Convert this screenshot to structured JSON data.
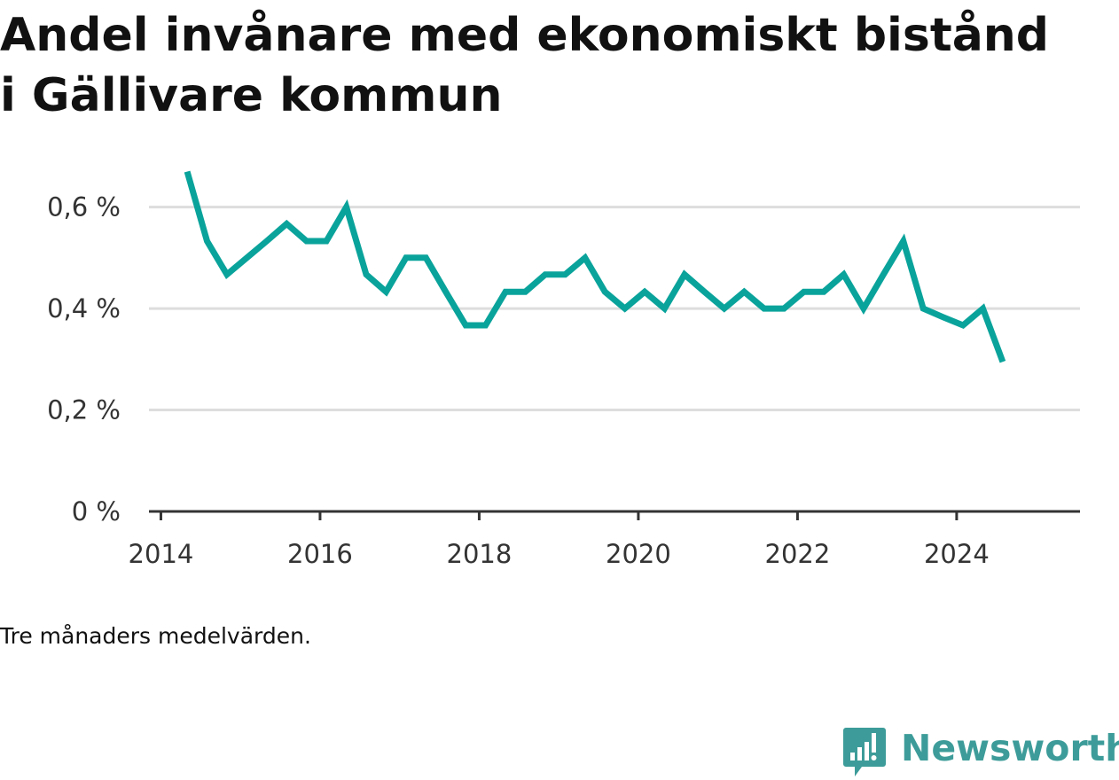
{
  "title": "Andel invånare med ekonomiskt bistånd i Gällivare kommun",
  "note": "Tre månaders medelvärden.",
  "brand": {
    "name": "Newsworthy",
    "icon": "newsworthy-logo-icon",
    "color": "#3d9c99"
  },
  "colors": {
    "line": "#0aa39b",
    "grid": "#dddddd",
    "axis": "#333333"
  },
  "chart_data": {
    "type": "line",
    "title": "Andel invånare med ekonomiskt bistånd i Gällivare kommun",
    "xlabel": "",
    "ylabel": "",
    "xlim": [
      2013.85,
      2025.55
    ],
    "ylim": [
      0,
      0.65
    ],
    "grid": true,
    "x_ticks": [
      2014,
      2016,
      2018,
      2020,
      2022,
      2024
    ],
    "x_tick_labels": [
      "2014",
      "2016",
      "2018",
      "2020",
      "2022",
      "2024"
    ],
    "y_ticks": [
      0,
      0.2,
      0.4,
      0.6
    ],
    "y_tick_labels": [
      "0 %",
      "0,2 %",
      "0,4 %",
      "0,6 %"
    ],
    "series": [
      {
        "x": [
          2014.33,
          2014.58,
          2014.83,
          2015.08,
          2015.33,
          2015.58,
          2015.83,
          2016.08,
          2016.33,
          2016.58,
          2016.83,
          2017.08,
          2017.33,
          2017.58,
          2017.83,
          2018.08,
          2018.33,
          2018.58,
          2018.83,
          2019.08,
          2019.33,
          2019.58,
          2019.83,
          2020.08,
          2020.33,
          2020.58,
          2020.83,
          2021.08,
          2021.33,
          2021.58,
          2021.83,
          2022.08,
          2022.33,
          2022.58,
          2022.83,
          2023.08,
          2023.33,
          2023.58,
          2023.83,
          2024.08,
          2024.33,
          2024.58
        ],
        "values": [
          0.67,
          0.533,
          0.467,
          0.5,
          0.533,
          0.567,
          0.533,
          0.533,
          0.6,
          0.467,
          0.433,
          0.5,
          0.5,
          0.433,
          0.367,
          0.367,
          0.433,
          0.433,
          0.467,
          0.467,
          0.5,
          0.433,
          0.4,
          0.433,
          0.4,
          0.467,
          0.433,
          0.4,
          0.433,
          0.4,
          0.4,
          0.433,
          0.433,
          0.467,
          0.4,
          0.467,
          0.533,
          0.4,
          0.383,
          0.367,
          0.4,
          0.295
        ]
      }
    ]
  }
}
